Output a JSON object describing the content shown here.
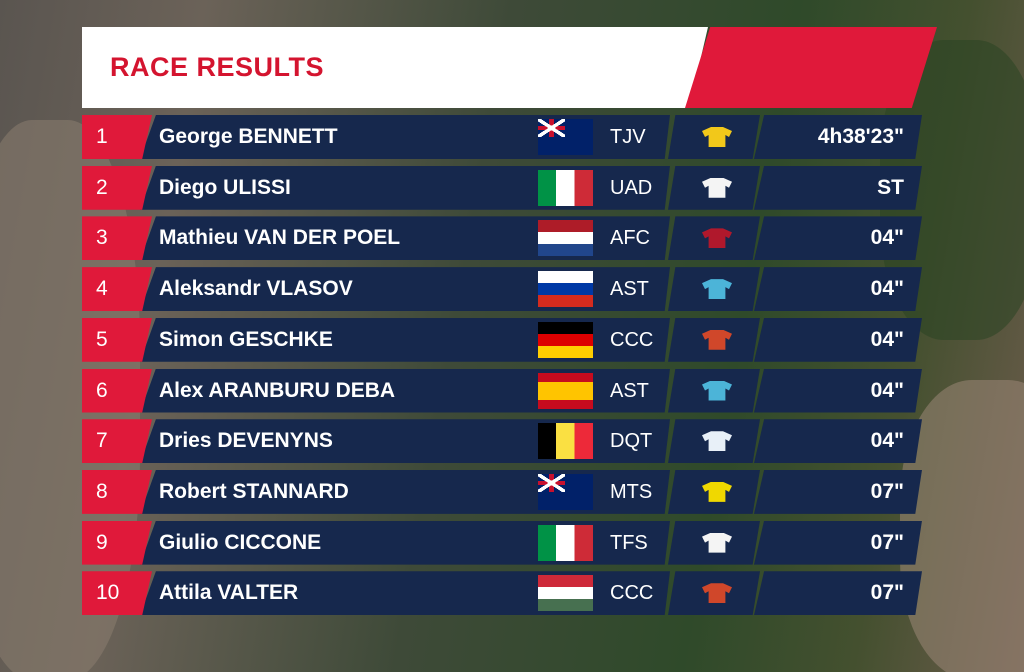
{
  "title": "RACE RESULTS",
  "rows": [
    {
      "rank": "1",
      "name": "George BENNETT",
      "team": "TJV",
      "time": "4h38'23\""
    },
    {
      "rank": "2",
      "name": "Diego ULISSI",
      "team": "UAD",
      "time": "ST"
    },
    {
      "rank": "3",
      "name": "Mathieu VAN DER POEL",
      "team": "AFC",
      "time": "04\""
    },
    {
      "rank": "4",
      "name": "Aleksandr VLASOV",
      "team": "AST",
      "time": "04\""
    },
    {
      "rank": "5",
      "name": "Simon GESCHKE",
      "team": "CCC",
      "time": "04\""
    },
    {
      "rank": "6",
      "name": "Alex ARANBURU DEBA",
      "team": "AST",
      "time": "04\""
    },
    {
      "rank": "7",
      "name": "Dries DEVENYNS",
      "team": "DQT",
      "time": "04\""
    },
    {
      "rank": "8",
      "name": "Robert STANNARD",
      "team": "MTS",
      "time": "07\""
    },
    {
      "rank": "9",
      "name": "Giulio CICCONE",
      "team": "TFS",
      "time": "07\""
    },
    {
      "rank": "10",
      "name": "Attila VALTER",
      "team": "CCC",
      "time": "07\""
    }
  ]
}
